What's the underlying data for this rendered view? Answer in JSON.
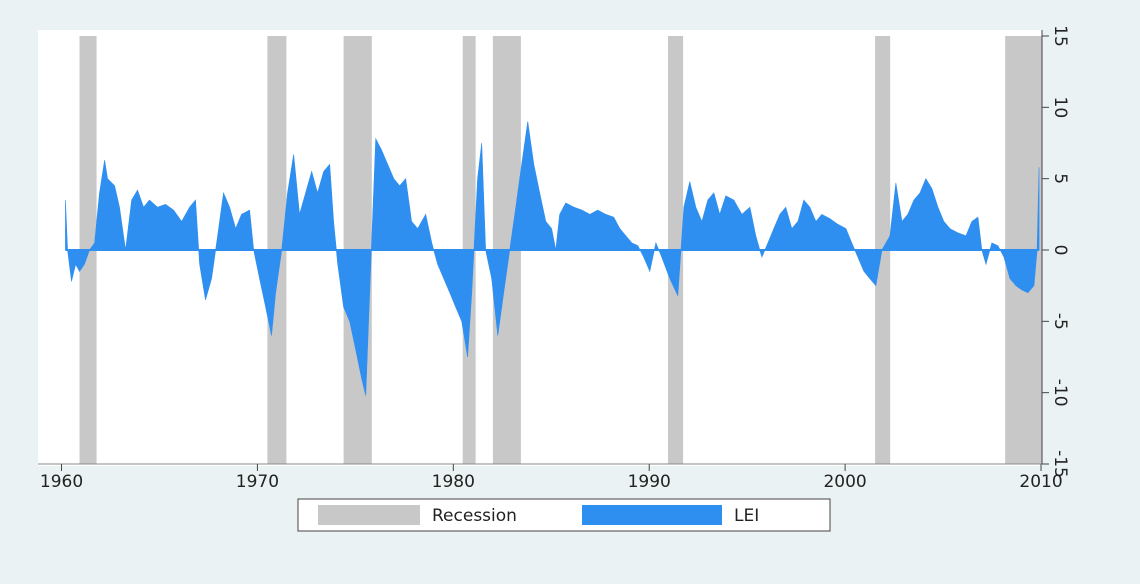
{
  "chart_data": {
    "type": "area",
    "xlim": [
      1958.8,
      2010.05
    ],
    "xticks": [
      1960,
      1970,
      1980,
      1990,
      2000,
      2010
    ],
    "ylim": [
      -15,
      15
    ],
    "yticks": [
      -15,
      -10,
      -5,
      0,
      5,
      10,
      15
    ],
    "recessions": {
      "name": "Recession",
      "color": "#c8c8c8",
      "spans": [
        [
          1960.92,
          1961.79
        ],
        [
          1970.51,
          1971.48
        ],
        [
          1974.4,
          1975.84
        ],
        [
          1980.48,
          1981.14
        ],
        [
          1982.02,
          1983.45
        ],
        [
          1990.96,
          1991.73
        ],
        [
          2001.53,
          2002.3
        ],
        [
          2008.17,
          2010.05
        ]
      ]
    },
    "x": [
      1960.2,
      1960.31,
      1960.51,
      1960.72,
      1960.92,
      1961.17,
      1961.43,
      1961.69,
      1961.94,
      1962.2,
      1962.35,
      1962.71,
      1962.96,
      1963.27,
      1963.58,
      1963.88,
      1964.19,
      1964.49,
      1964.9,
      1965.31,
      1965.72,
      1966.13,
      1966.54,
      1966.84,
      1967.05,
      1967.35,
      1967.66,
      1967.97,
      1968.27,
      1968.58,
      1968.89,
      1969.19,
      1969.6,
      1969.81,
      1970.11,
      1970.42,
      1970.72,
      1970.93,
      1971.24,
      1971.54,
      1971.85,
      1972.15,
      1972.46,
      1972.77,
      1973.07,
      1973.38,
      1973.69,
      1973.89,
      1974.1,
      1974.4,
      1974.71,
      1975.02,
      1975.32,
      1975.53,
      1975.73,
      1976.04,
      1976.34,
      1976.65,
      1976.96,
      1977.26,
      1977.57,
      1977.87,
      1978.18,
      1978.59,
      1978.9,
      1979.2,
      1979.51,
      1979.82,
      1980.12,
      1980.43,
      1980.73,
      1980.94,
      1981.24,
      1981.45,
      1981.65,
      1981.96,
      1982.27,
      1982.57,
      1982.88,
      1983.19,
      1983.49,
      1983.8,
      1984.11,
      1984.41,
      1984.72,
      1985.02,
      1985.23,
      1985.43,
      1985.74,
      1986.15,
      1986.56,
      1986.97,
      1987.37,
      1987.78,
      1988.19,
      1988.5,
      1988.8,
      1989.11,
      1989.42,
      1989.72,
      1990.03,
      1990.34,
      1990.64,
      1991.05,
      1991.46,
      1991.77,
      1992.07,
      1992.38,
      1992.69,
      1992.99,
      1993.3,
      1993.6,
      1993.91,
      1994.32,
      1994.73,
      1995.14,
      1995.44,
      1995.75,
      1996.06,
      1996.36,
      1996.67,
      1996.97,
      1997.28,
      1997.59,
      1997.89,
      1998.2,
      1998.51,
      1998.81,
      1999.22,
      1999.63,
      2000.04,
      2000.34,
      2000.65,
      2000.96,
      2001.26,
      2001.57,
      2001.88,
      2002.29,
      2002.59,
      2002.9,
      2003.2,
      2003.51,
      2003.82,
      2004.12,
      2004.43,
      2004.74,
      2005.04,
      2005.35,
      2005.76,
      2006.17,
      2006.47,
      2006.78,
      2006.98,
      2007.19,
      2007.49,
      2007.8,
      2008.11,
      2008.41,
      2008.72,
      2009.03,
      2009.33,
      2009.64,
      2009.8,
      2009.9
    ],
    "series": [
      {
        "name": "LEI",
        "color": "#2f8ff0",
        "values": [
          3.5,
          0,
          -2.2,
          -1,
          -1.5,
          -1,
          0,
          0.5,
          4,
          6.3,
          5,
          4.5,
          3,
          0,
          3.5,
          4.2,
          3,
          3.5,
          3,
          3.2,
          2.8,
          2,
          3,
          3.5,
          -1,
          -3.5,
          -2,
          1,
          4,
          3,
          1.5,
          2.5,
          2.8,
          0,
          -2,
          -4,
          -6,
          -3,
          0,
          4,
          6.7,
          2.5,
          4,
          5.5,
          4,
          5.5,
          6,
          2,
          -1,
          -4,
          -5,
          -7,
          -9,
          -10.2,
          -3,
          7.8,
          7,
          6,
          5,
          4.5,
          5,
          2,
          1.5,
          2.5,
          0.5,
          -1,
          -2,
          -3,
          -4,
          -5,
          -7.5,
          -3,
          5,
          7.5,
          0,
          -2,
          -6,
          -3,
          0,
          3,
          6,
          9,
          6,
          4,
          2,
          1.5,
          0,
          2.5,
          3.3,
          3,
          2.8,
          2.5,
          2.8,
          2.5,
          2.3,
          1.5,
          1,
          0.5,
          0.3,
          -0.5,
          -1.5,
          0.5,
          -0.5,
          -2,
          -3.2,
          3,
          4.8,
          3,
          2,
          3.5,
          4,
          2.5,
          3.8,
          3.5,
          2.5,
          3,
          1,
          -0.5,
          0.5,
          1.5,
          2.5,
          3,
          1.5,
          2,
          3.5,
          3,
          2,
          2.5,
          2.2,
          1.8,
          1.5,
          0.5,
          -0.5,
          -1.5,
          -2,
          -2.5,
          0,
          1,
          4.7,
          2,
          2.5,
          3.5,
          4,
          5,
          4.3,
          3,
          2,
          1.5,
          1.2,
          1,
          2,
          2.3,
          0,
          -1,
          0.5,
          0.3,
          -0.5,
          -2,
          -2.5,
          -2.8,
          -3,
          -2.5,
          0,
          5.8
        ]
      }
    ]
  }
}
